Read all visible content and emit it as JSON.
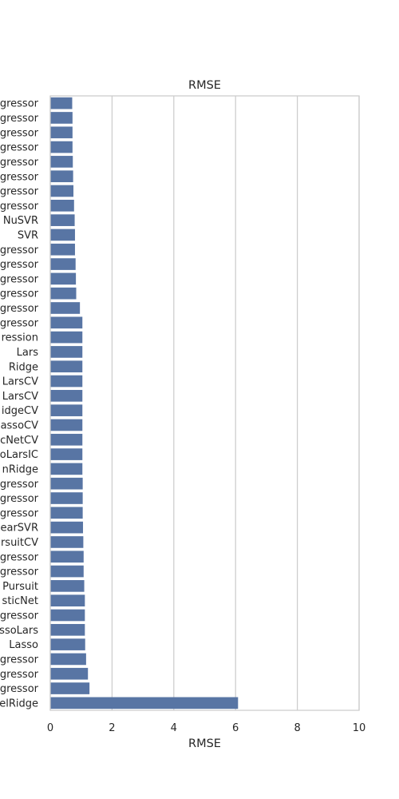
{
  "chart_data": {
    "type": "bar",
    "orientation": "horizontal",
    "title": "RMSE",
    "xlabel": "RMSE",
    "ylabel": "",
    "xlim": [
      0,
      10
    ],
    "xticks": [
      "0",
      "2",
      "4",
      "6",
      "8",
      "10"
    ],
    "grid": "vertical",
    "bar_color": "#5875a4",
    "categories": [
      "gressor",
      "gressor",
      "gressor",
      "gressor",
      "gressor",
      "gressor",
      "gressor",
      "gressor",
      "NuSVR",
      "SVR",
      "gressor",
      "gressor",
      "gressor",
      "gressor",
      "gressor",
      "gressor",
      "ression",
      "Lars",
      "Ridge",
      "LarsCV",
      "LarsCV",
      "idgeCV",
      "assoCV",
      "cNetCV",
      "oLarsIC",
      "nRidge",
      "gressor",
      "gressor",
      "gressor",
      "earSVR",
      "rsuitCV",
      "gressor",
      "gressor",
      "Pursuit",
      "sticNet",
      "gressor",
      "ssoLars",
      "Lasso",
      "gressor",
      "gressor",
      "gressor",
      "elRidge"
    ],
    "values": [
      0.71,
      0.72,
      0.72,
      0.72,
      0.73,
      0.74,
      0.75,
      0.77,
      0.79,
      0.8,
      0.8,
      0.82,
      0.83,
      0.84,
      0.96,
      1.04,
      1.04,
      1.04,
      1.04,
      1.04,
      1.04,
      1.04,
      1.04,
      1.04,
      1.04,
      1.04,
      1.05,
      1.05,
      1.05,
      1.06,
      1.07,
      1.08,
      1.08,
      1.1,
      1.12,
      1.12,
      1.12,
      1.13,
      1.16,
      1.22,
      1.27,
      6.08
    ]
  }
}
